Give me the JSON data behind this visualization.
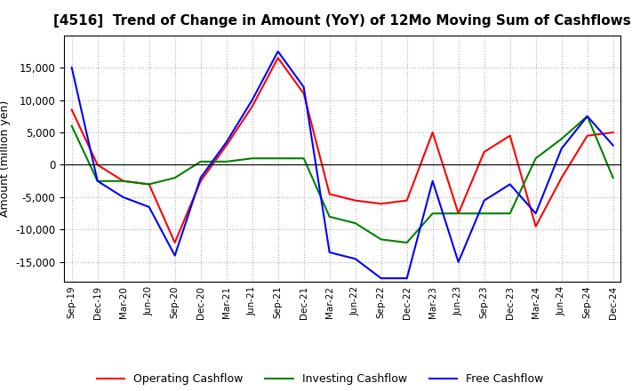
{
  "title": "[4516]  Trend of Change in Amount (YoY) of 12Mo Moving Sum of Cashflows",
  "ylabel": "Amount (million yen)",
  "ylim": [
    -18000,
    20000
  ],
  "yticks": [
    -15000,
    -10000,
    -5000,
    0,
    5000,
    10000,
    15000
  ],
  "x_labels": [
    "Sep-19",
    "Dec-19",
    "Mar-20",
    "Jun-20",
    "Sep-20",
    "Dec-20",
    "Mar-21",
    "Jun-21",
    "Sep-21",
    "Dec-21",
    "Mar-22",
    "Jun-22",
    "Sep-22",
    "Dec-22",
    "Mar-23",
    "Jun-23",
    "Sep-23",
    "Dec-23",
    "Mar-24",
    "Jun-24",
    "Sep-24",
    "Dec-24"
  ],
  "operating": [
    8500,
    0,
    -2500,
    -3000,
    -12000,
    -2500,
    3000,
    9000,
    16500,
    11000,
    -4500,
    -5500,
    -6000,
    -5500,
    5000,
    -7500,
    2000,
    4500,
    -9500,
    -2000,
    4500,
    5000
  ],
  "investing": [
    6000,
    -2500,
    -2500,
    -3000,
    -2000,
    500,
    500,
    1000,
    1000,
    1000,
    -8000,
    -9000,
    -11500,
    -12000,
    -7500,
    -7500,
    -7500,
    -7500,
    1000,
    4000,
    7500,
    -2000
  ],
  "free": [
    15000,
    -2500,
    -5000,
    -6500,
    -14000,
    -2000,
    3500,
    10000,
    17500,
    12000,
    -13500,
    -14500,
    -17500,
    -17500,
    -2500,
    -15000,
    -5500,
    -3000,
    -7500,
    2500,
    7500,
    3000
  ],
  "operating_color": "#ff0000",
  "investing_color": "#008000",
  "free_color": "#0000ff",
  "background_color": "#ffffff",
  "grid_color": "#b0b0b0",
  "title_fontsize": 11,
  "axis_fontsize": 9,
  "legend_fontsize": 9
}
